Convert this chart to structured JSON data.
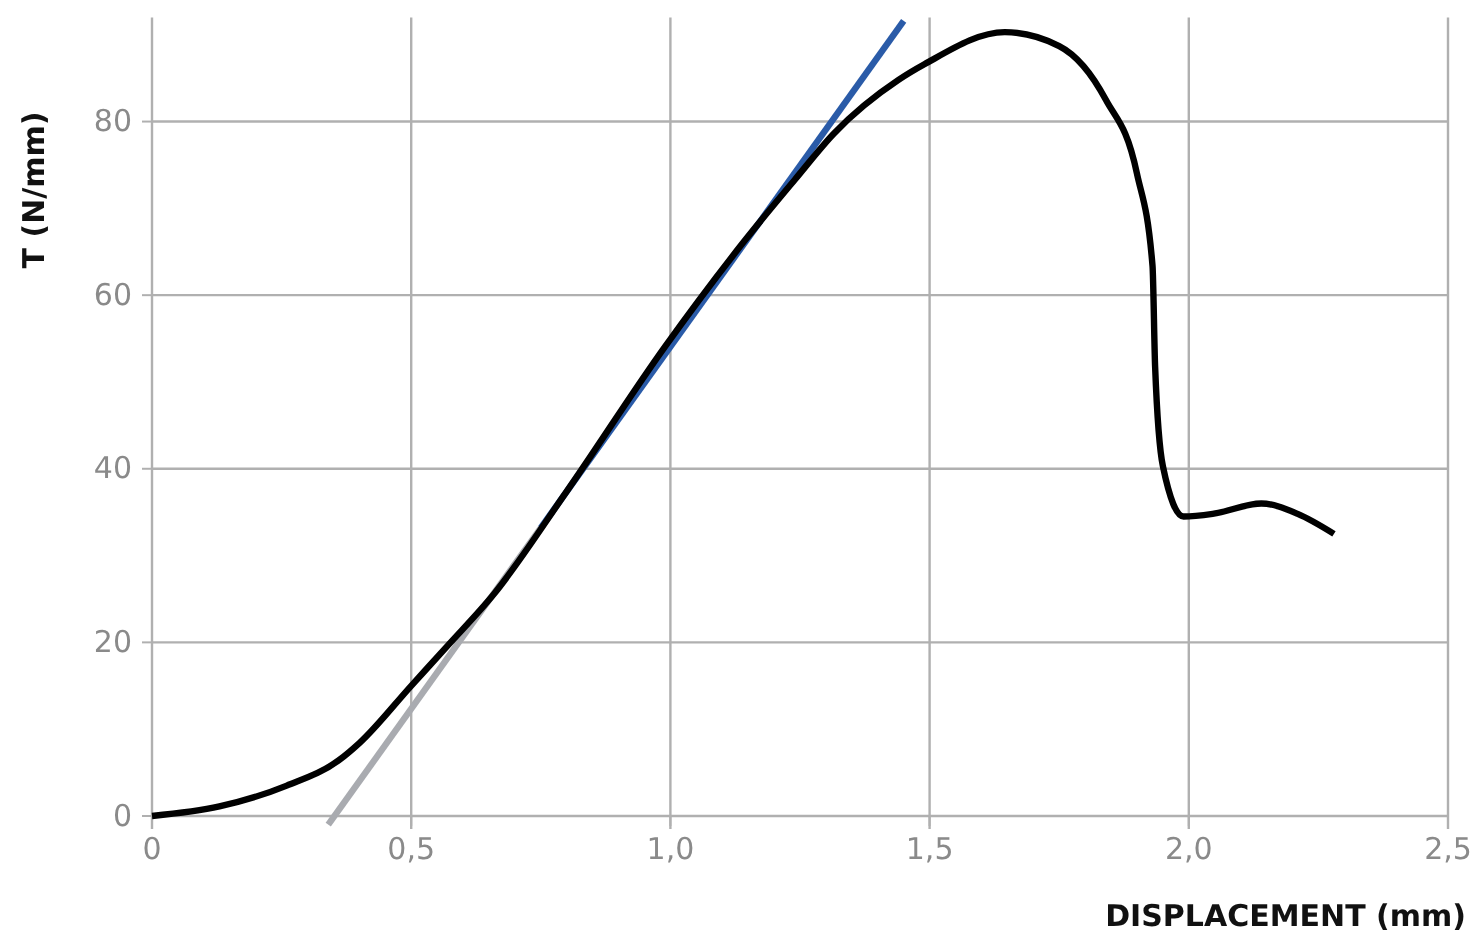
{
  "chart_data": {
    "type": "line",
    "xlabel": "DISPLACEMENT (mm)",
    "ylabel": "T (N/mm)",
    "xlim": [
      0,
      2.5
    ],
    "ylim": [
      -1.5,
      92
    ],
    "xticks": [
      {
        "value": 0,
        "label": "0"
      },
      {
        "value": 0.5,
        "label": "0,5"
      },
      {
        "value": 1,
        "label": "1,0"
      },
      {
        "value": 1.5,
        "label": "1,5"
      },
      {
        "value": 2,
        "label": "2,0"
      },
      {
        "value": 2.5,
        "label": "2,5"
      }
    ],
    "yticks": [
      0,
      20,
      40,
      60,
      80
    ],
    "grid": true,
    "marker": "none",
    "line_style": "solid",
    "series": [
      {
        "color": "#a9abb0",
        "x": [
          0.34,
          0.75
        ],
        "values": [
          -1,
          33.2
        ]
      },
      {
        "color": "#2a5ba8",
        "x": [
          0.75,
          1.45
        ],
        "values": [
          33.2,
          91.6
        ]
      },
      {
        "color": "#000000",
        "x": [
          0,
          0.13,
          0.26,
          0.36,
          0.4,
          0.5,
          0.57,
          0.66,
          0.8,
          0.99,
          1.145,
          1.24,
          1.315,
          1.44,
          1.49,
          1.645,
          1.75,
          1.84,
          1.9,
          1.93,
          1.935,
          1.95,
          1.99,
          2.046,
          2.14,
          2.21,
          2.28
        ],
        "values": [
          0,
          1.1,
          3.5,
          6.4,
          8.4,
          15,
          19.6,
          25.6,
          37.4,
          54.1,
          66.4,
          73.3,
          78.6,
          84.8,
          86.6,
          90.3,
          88.7,
          82.5,
          74,
          63.4,
          51.8,
          40.3,
          34.5,
          34.8,
          36,
          34.8,
          32.5
        ]
      }
    ]
  }
}
